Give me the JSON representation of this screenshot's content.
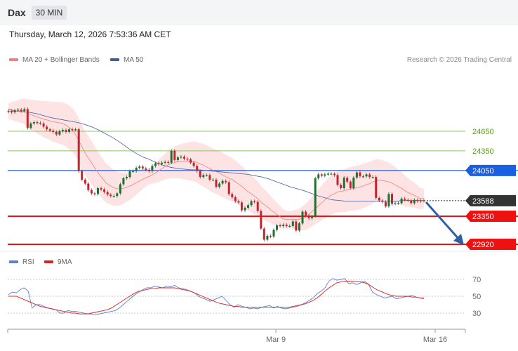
{
  "header": {
    "title": "Dax",
    "timeframe": "30 MIN",
    "date": "Thursday, March 12, 2026 7:53:36 AM CET"
  },
  "legend": {
    "ma20": "MA 20 + Bollinger Bands",
    "ma50": "MA 50",
    "rsi": "RSI",
    "rsi_ma": "9MA",
    "credit": "Research © 2026 Trading Central"
  },
  "colors": {
    "ma20": "#f08080",
    "ma50": "#3f5e9f",
    "rsi": "#5b7fd6",
    "rsi_ma": "#e02020",
    "support": "#ee1111",
    "resistance": "#1a5fe0",
    "target": "#8cc063",
    "up": "#1f6f2f",
    "down": "#c0272d",
    "arrow": "#2d5fa6",
    "band": "#fde0e0"
  },
  "chart_data": [
    {
      "type": "candlestick",
      "title": "Dax",
      "timeframe": "30 MIN",
      "x_labels": [
        "Mar 9",
        "Mar 16"
      ],
      "levels": [
        {
          "value": 24650,
          "label": "24650",
          "kind": "target"
        },
        {
          "value": 24350,
          "label": "24350",
          "kind": "target"
        },
        {
          "value": 24050,
          "label": "24050",
          "kind": "resistance"
        },
        {
          "value": 23588,
          "label": "23588",
          "kind": "last"
        },
        {
          "value": 23350,
          "label": "23350",
          "kind": "support"
        },
        {
          "value": 22920,
          "label": "22920",
          "kind": "support"
        }
      ],
      "close": [
        24960,
        24940,
        24970,
        24980,
        24960,
        24990,
        24700,
        24770,
        24790,
        24780,
        24770,
        24720,
        24680,
        24660,
        24640,
        24600,
        24650,
        24670,
        24640,
        24680,
        24670,
        24680,
        24040,
        23910,
        23850,
        23750,
        23700,
        23690,
        23780,
        23760,
        23720,
        23680,
        23660,
        23660,
        23700,
        23840,
        23930,
        23950,
        24040,
        24040,
        24090,
        24110,
        24080,
        24060,
        24040,
        24120,
        24160,
        24150,
        24170,
        24180,
        24170,
        24350,
        24210,
        24250,
        24260,
        24230,
        24220,
        24170,
        24120,
        24040,
        23950,
        23980,
        23980,
        23910,
        23910,
        23800,
        23850,
        23890,
        23870,
        23690,
        23640,
        23580,
        23560,
        23440,
        23480,
        23520,
        23580,
        23570,
        23430,
        23160,
        22990,
        23050,
        23040,
        23140,
        23210,
        23200,
        23220,
        23200,
        23200,
        23270,
        23130,
        23240,
        23420,
        23360,
        23320,
        23350,
        23930,
        23990,
        23970,
        23990,
        24000,
        24000,
        23980,
        23830,
        23780,
        23940,
        23880,
        23780,
        23940,
        24020,
        23960,
        23960,
        23990,
        23950,
        23950,
        23630,
        23590,
        23570,
        23500,
        23690,
        23540,
        23550,
        23550,
        23620,
        23600,
        23590,
        23550,
        23600,
        23580,
        23590,
        23588
      ],
      "ma20": [
        24960,
        24960,
        24960,
        24960,
        24960,
        24940,
        24910,
        24890,
        24870,
        24850,
        24830,
        24820,
        24800,
        24790,
        24780,
        24770,
        24740,
        24700,
        24650,
        24560,
        24450,
        24340,
        24250,
        24170,
        24080,
        24000,
        23930,
        23860,
        23820,
        23790,
        23770,
        23770,
        23780,
        23800,
        23820,
        23850,
        23880,
        23910,
        23940,
        23960,
        23990,
        24020,
        24060,
        24100,
        24130,
        24160,
        24170,
        24190,
        24190,
        24190,
        24190,
        24190,
        24180,
        24150,
        24130,
        24100,
        24070,
        24040,
        24020,
        23990,
        23960,
        23930,
        23910,
        23870,
        23830,
        23790,
        23740,
        23700,
        23660,
        23620,
        23560,
        23520,
        23480,
        23430,
        23390,
        23350,
        23310,
        23300,
        23300,
        23300,
        23300,
        23310,
        23330,
        23370,
        23420,
        23470,
        23520,
        23570,
        23620,
        23660,
        23690,
        23720,
        23730,
        23740,
        23760,
        23770,
        23780,
        23790,
        23810,
        23830,
        23850,
        23880,
        23900,
        23900,
        23890,
        23880,
        23860,
        23830,
        23800,
        23770,
        23730,
        23700,
        23680,
        23650,
        23620,
        23620
      ],
      "ma50": [
        24990,
        24960,
        24950,
        24940,
        24920,
        24890,
        24860,
        24840,
        24820,
        24800,
        24780,
        24750,
        24710,
        24660,
        24600,
        24540,
        24470,
        24390,
        24320,
        24260,
        24220,
        24170,
        24130,
        24100,
        24080,
        24070,
        24060,
        24060,
        24050,
        24040,
        24030,
        24020,
        24010,
        24000,
        23990,
        23970,
        23950,
        23920,
        23880,
        23840,
        23800,
        23770,
        23740,
        23700,
        23660,
        23630,
        23600,
        23590,
        23580,
        23580,
        23580,
        23580,
        23580,
        23580,
        23580,
        23580,
        23590,
        23590,
        23590,
        23590
      ],
      "rsi": [
        52,
        55,
        54,
        58,
        60,
        56,
        36,
        40,
        40,
        38,
        36,
        35,
        34,
        30,
        30,
        33,
        32,
        32,
        31,
        30,
        29,
        29,
        28,
        29,
        30,
        31,
        32,
        33,
        36,
        40,
        44,
        48,
        52,
        55,
        58,
        60,
        60,
        62,
        61,
        60,
        62,
        61,
        63,
        60,
        59,
        58,
        56,
        54,
        50,
        48,
        46,
        44,
        46,
        48,
        50,
        45,
        40,
        37,
        40,
        38,
        37,
        35,
        36,
        35,
        37,
        38,
        39,
        36,
        38,
        36,
        35,
        36,
        37,
        38,
        40,
        42,
        45,
        48,
        53,
        56,
        60,
        68,
        71,
        69,
        70,
        71,
        65,
        66,
        64,
        66,
        68,
        64,
        55,
        52,
        50,
        48,
        49,
        50,
        47,
        48,
        49,
        50,
        51,
        49,
        48,
        47
      ],
      "rsi_ma": [
        50,
        50,
        50,
        48,
        46,
        44,
        42,
        40,
        38,
        37,
        36,
        35,
        34,
        33,
        32,
        31,
        30,
        30,
        29,
        29,
        29,
        30,
        31,
        32,
        33,
        34,
        36,
        39,
        42,
        45,
        48,
        51,
        54,
        56,
        57,
        58,
        59,
        59,
        60,
        60,
        60,
        60,
        60,
        59,
        58,
        57,
        56,
        54,
        52,
        50,
        48,
        46,
        44,
        42,
        41,
        40,
        39,
        38,
        38,
        37,
        37,
        37,
        37,
        37,
        37,
        37,
        37,
        37,
        37,
        37,
        37,
        37,
        38,
        39,
        40,
        41,
        43,
        45,
        48,
        52,
        56,
        60,
        63,
        66,
        67,
        68,
        68,
        68,
        67,
        67,
        66,
        64,
        61,
        58,
        56,
        54,
        52,
        51,
        50,
        50,
        50,
        50,
        49,
        49,
        48,
        48
      ],
      "rsi_ticks": [
        70,
        50,
        30
      ]
    }
  ]
}
